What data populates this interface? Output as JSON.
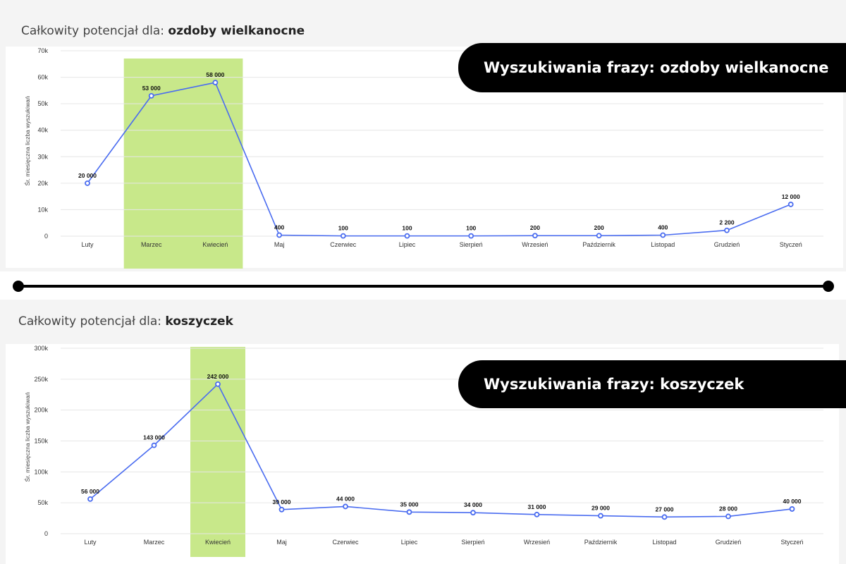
{
  "colors": {
    "line": "#4a6cf0",
    "highlight": "#c8e88a",
    "pill_bg": "#000000",
    "pill_text": "#ffffff"
  },
  "divider_icon": "line-with-dot-ends",
  "sections": [
    {
      "title_prefix": "Całkowity potencjał dla: ",
      "title_phrase": "ozdoby wielkanocne",
      "pill_text": "Wyszukiwania frazy: ozdoby wielkanocne"
    },
    {
      "title_prefix": "Całkowity potencjał dla: ",
      "title_phrase": "koszyczek",
      "pill_text": "Wyszukiwania frazy: koszyczek"
    }
  ],
  "chart_data": [
    {
      "type": "line",
      "ylabel": "Śr. miesięczna liczba wyszukiwań",
      "xlabel": "",
      "ylim": [
        0,
        70000
      ],
      "yticks": [
        0,
        10000,
        20000,
        30000,
        40000,
        50000,
        60000,
        70000
      ],
      "ytick_labels": [
        "0",
        "10k",
        "20k",
        "30k",
        "40k",
        "50k",
        "60k",
        "70k"
      ],
      "categories": [
        "Luty",
        "Marzec",
        "Kwiecień",
        "Maj",
        "Czerwiec",
        "Lipiec",
        "Sierpień",
        "Wrzesień",
        "Październik",
        "Listopad",
        "Grudzień",
        "Styczeń"
      ],
      "values": [
        20000,
        53000,
        58000,
        400,
        100,
        100,
        100,
        200,
        200,
        400,
        2200,
        12000
      ],
      "value_labels": [
        "20 000",
        "53 000",
        "58 000",
        "400",
        "100",
        "100",
        "100",
        "200",
        "200",
        "400",
        "2 200",
        "12 000"
      ],
      "highlight_categories": [
        "Marzec",
        "Kwiecień"
      ],
      "grid": true
    },
    {
      "type": "line",
      "ylabel": "Śr. miesięczna liczba wyszukiwań",
      "xlabel": "",
      "ylim": [
        0,
        300000
      ],
      "yticks": [
        0,
        50000,
        100000,
        150000,
        200000,
        250000,
        300000
      ],
      "ytick_labels": [
        "0",
        "50k",
        "100k",
        "150k",
        "200k",
        "250k",
        "300k"
      ],
      "categories": [
        "Luty",
        "Marzec",
        "Kwiecień",
        "Maj",
        "Czerwiec",
        "Lipiec",
        "Sierpień",
        "Wrzesień",
        "Październik",
        "Listopad",
        "Grudzień",
        "Styczeń"
      ],
      "values": [
        56000,
        143000,
        242000,
        39000,
        44000,
        35000,
        34000,
        31000,
        29000,
        27000,
        28000,
        40000
      ],
      "value_labels": [
        "56 000",
        "143 000",
        "242 000",
        "39 000",
        "44 000",
        "35 000",
        "34 000",
        "31 000",
        "29 000",
        "27 000",
        "28 000",
        "40 000"
      ],
      "highlight_categories": [
        "Kwiecień"
      ],
      "grid": true
    }
  ]
}
